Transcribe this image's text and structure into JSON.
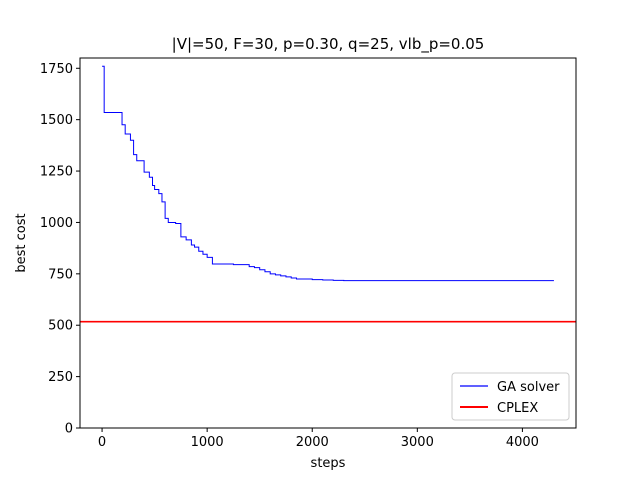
{
  "chart_data": {
    "type": "line",
    "title": "|V|=50, F=30, p=0.30, q=25, vlb_p=0.05",
    "xlabel": "steps",
    "ylabel": "best cost",
    "xlim": [
      -210,
      4510
    ],
    "ylim": [
      0,
      1800
    ],
    "xticks": [
      0,
      1000,
      2000,
      3000,
      4000
    ],
    "xtick_labels": [
      "0",
      "1000",
      "2000",
      "3000",
      "4000"
    ],
    "yticks": [
      0,
      250,
      500,
      750,
      1000,
      1250,
      1500,
      1750
    ],
    "ytick_labels": [
      "0",
      "250",
      "500",
      "750",
      "1000",
      "1250",
      "1500",
      "1750"
    ],
    "grid": false,
    "legend_position": "lower-right",
    "series": [
      {
        "name": "GA solver",
        "color": "#0000ff",
        "style": "step",
        "x": [
          0,
          20,
          170,
          190,
          220,
          270,
          300,
          330,
          400,
          450,
          480,
          500,
          540,
          570,
          600,
          630,
          700,
          750,
          800,
          850,
          880,
          920,
          960,
          1000,
          1050,
          1250,
          1400,
          1450,
          1500,
          1550,
          1600,
          1650,
          1700,
          1750,
          1800,
          1850,
          2000,
          2100,
          2200,
          2300,
          4300
        ],
        "y": [
          1760,
          1535,
          1535,
          1475,
          1430,
          1400,
          1330,
          1300,
          1245,
          1220,
          1180,
          1160,
          1140,
          1100,
          1020,
          1000,
          995,
          930,
          915,
          890,
          880,
          860,
          845,
          830,
          798,
          795,
          785,
          780,
          770,
          760,
          750,
          745,
          740,
          735,
          730,
          725,
          722,
          720,
          718,
          717,
          717
        ]
      },
      {
        "name": "CPLEX",
        "color": "#ff0000",
        "style": "hline",
        "value": 517
      }
    ]
  }
}
